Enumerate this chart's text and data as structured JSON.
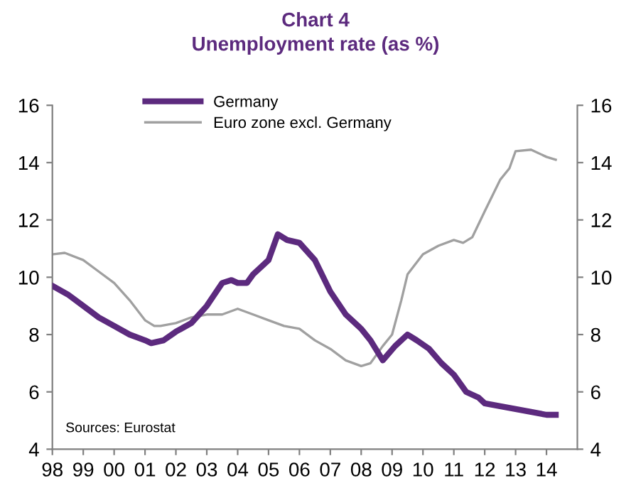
{
  "chart_data": {
    "type": "line",
    "title": "Chart 4",
    "subtitle": "Unemployment rate (as %)",
    "xlim": [
      1998,
      2015
    ],
    "xticks": [
      {
        "value": 1998,
        "label": "98"
      },
      {
        "value": 1999,
        "label": "99"
      },
      {
        "value": 2000,
        "label": "00"
      },
      {
        "value": 2001,
        "label": "01"
      },
      {
        "value": 2002,
        "label": "02"
      },
      {
        "value": 2003,
        "label": "03"
      },
      {
        "value": 2004,
        "label": "04"
      },
      {
        "value": 2005,
        "label": "05"
      },
      {
        "value": 2006,
        "label": "06"
      },
      {
        "value": 2007,
        "label": "07"
      },
      {
        "value": 2008,
        "label": "08"
      },
      {
        "value": 2009,
        "label": "09"
      },
      {
        "value": 2010,
        "label": "10"
      },
      {
        "value": 2011,
        "label": "11"
      },
      {
        "value": 2012,
        "label": "12"
      },
      {
        "value": 2013,
        "label": "13"
      },
      {
        "value": 2014,
        "label": "14"
      }
    ],
    "ylim": [
      4,
      16
    ],
    "yticks": [
      4,
      6,
      8,
      10,
      12,
      14,
      16
    ],
    "y2lim": [
      4,
      16
    ],
    "y2ticks": [
      4,
      6,
      8,
      10,
      12,
      14,
      16
    ],
    "grid": false,
    "legend": "top left",
    "marker": "none",
    "series": [
      {
        "name": "Germany",
        "color": "#5c2a7e",
        "x": [
          1998,
          1998.5,
          1999,
          1999.5,
          2000,
          2000.5,
          2001,
          2001.2,
          2001.6,
          2002,
          2002.5,
          2003,
          2003.5,
          2003.8,
          2004,
          2004.3,
          2004.5,
          2005,
          2005.3,
          2005.6,
          2006,
          2006.5,
          2007,
          2007.5,
          2008,
          2008.3,
          2008.7,
          2009.1,
          2009.5,
          2009.8,
          2010.2,
          2010.6,
          2011,
          2011.4,
          2011.8,
          2012,
          2012.5,
          2013,
          2013.5,
          2014,
          2014.3
        ],
        "values": [
          9.7,
          9.4,
          9.0,
          8.6,
          8.3,
          8.0,
          7.8,
          7.7,
          7.8,
          8.1,
          8.4,
          9.0,
          9.8,
          9.9,
          9.8,
          9.8,
          10.1,
          10.6,
          11.5,
          11.3,
          11.2,
          10.6,
          9.5,
          8.7,
          8.2,
          7.8,
          7.1,
          7.6,
          8.0,
          7.8,
          7.5,
          7.0,
          6.6,
          6.0,
          5.8,
          5.6,
          5.5,
          5.4,
          5.3,
          5.2,
          5.2
        ]
      },
      {
        "name": "Euro zone excl. Germany",
        "color": "#a0a0a0",
        "x": [
          1998,
          1998.4,
          1999,
          1999.5,
          2000,
          2000.5,
          2001,
          2001.3,
          2001.5,
          2002,
          2002.5,
          2003,
          2003.5,
          2004,
          2004.5,
          2005,
          2005.5,
          2006,
          2006.5,
          2007,
          2007.5,
          2008,
          2008.3,
          2008.7,
          2009,
          2009.3,
          2009.5,
          2010,
          2010.5,
          2011,
          2011.3,
          2011.6,
          2012,
          2012.5,
          2012.8,
          2013,
          2013.5,
          2014,
          2014.3
        ],
        "values": [
          10.8,
          10.85,
          10.6,
          10.2,
          9.8,
          9.2,
          8.5,
          8.3,
          8.3,
          8.4,
          8.6,
          8.7,
          8.7,
          8.9,
          8.7,
          8.5,
          8.3,
          8.2,
          7.8,
          7.5,
          7.1,
          6.9,
          7.0,
          7.6,
          8.0,
          9.2,
          10.1,
          10.8,
          11.1,
          11.3,
          11.2,
          11.4,
          12.3,
          13.4,
          13.8,
          14.4,
          14.45,
          14.2,
          14.1
        ]
      }
    ],
    "annotations": [
      "Sources: Eurostat"
    ]
  }
}
